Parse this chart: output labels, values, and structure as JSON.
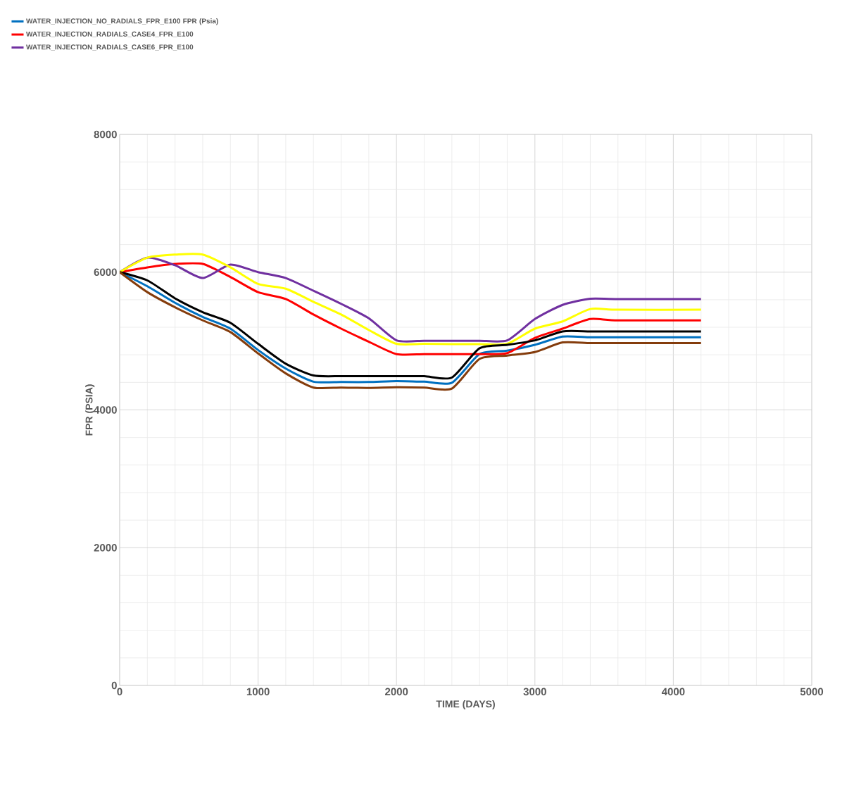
{
  "chart_data": {
    "type": "line",
    "xlabel": "TIME (DAYS)",
    "ylabel": "FPR (PSIA)",
    "xlim": [
      0,
      5000
    ],
    "ylim": [
      0,
      8000
    ],
    "xticks": [
      0,
      1000,
      2000,
      3000,
      4000,
      5000
    ],
    "yticks": [
      0,
      2000,
      4000,
      6000,
      8000
    ],
    "grid": true,
    "legend": "top left",
    "line_style": "solid",
    "marker": "none",
    "x": [
      0,
      200,
      400,
      600,
      800,
      1000,
      1200,
      1400,
      1600,
      1800,
      2000,
      2200,
      2400,
      2600,
      2800,
      3000,
      3200,
      3400,
      3600,
      4200
    ],
    "series": [
      {
        "name": "WATER_INJECTION_NO_RADIALS_FPR_E100 FPR (Psia)",
        "color": "#0070c0",
        "values": [
          6000,
          5795,
          5555,
          5350,
          5180,
          4870,
          4600,
          4410,
          4405,
          4405,
          4420,
          4410,
          4395,
          4810,
          4860,
          4945,
          5065,
          5055,
          5055,
          5055
        ]
      },
      {
        "name": "WATER_INJECTION_RADIALS_CASE4_FPR_E100",
        "color": "#ff0000",
        "values": [
          6000,
          6070,
          6120,
          6120,
          5930,
          5710,
          5610,
          5385,
          5180,
          4990,
          4810,
          4810,
          4810,
          4810,
          4825,
          5045,
          5180,
          5320,
          5300,
          5300
        ]
      },
      {
        "name": "WATER_INJECTION_RADIALS_CASE6_FPR_E100",
        "color": "#7030a0",
        "values": [
          6000,
          6210,
          6100,
          5915,
          6110,
          6000,
          5915,
          5730,
          5540,
          5330,
          5010,
          5005,
          5005,
          5005,
          5010,
          5320,
          5525,
          5615,
          5610,
          5610
        ]
      },
      {
        "color": "#ffff00",
        "values": [
          6000,
          6210,
          6255,
          6255,
          6070,
          5830,
          5760,
          5570,
          5385,
          5160,
          4960,
          4960,
          4955,
          4955,
          4960,
          5180,
          5285,
          5465,
          5455,
          5455
        ]
      },
      {
        "color": "#000000",
        "values": [
          6000,
          5880,
          5620,
          5420,
          5265,
          4960,
          4670,
          4500,
          4490,
          4490,
          4490,
          4490,
          4470,
          4895,
          4945,
          5010,
          5140,
          5140,
          5140,
          5140
        ]
      },
      {
        "color": "#843c0c",
        "values": [
          6000,
          5710,
          5490,
          5300,
          5130,
          4820,
          4530,
          4325,
          4325,
          4320,
          4330,
          4325,
          4310,
          4740,
          4790,
          4840,
          4980,
          4970,
          4970,
          4970
        ]
      }
    ]
  }
}
